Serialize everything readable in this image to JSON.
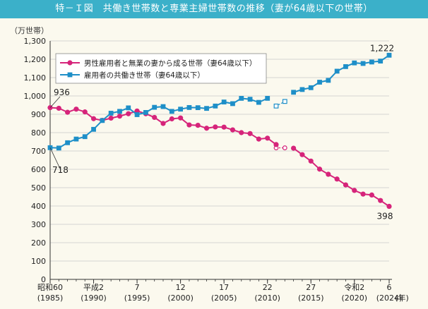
{
  "chart_data": {
    "title": "特－Ｉ図　共働き世帯数と専業主婦世帯数の推移（妻が64歳以下の世帯）",
    "type": "line",
    "ylabel": "（万世帯）",
    "xlabel": "(年)",
    "ylim": [
      0,
      1300
    ],
    "yticks": [
      0,
      100,
      200,
      300,
      400,
      500,
      600,
      700,
      800,
      900,
      1000,
      1100,
      1200,
      1300
    ],
    "yticklabels": [
      "0",
      "100",
      "200",
      "300",
      "400",
      "500",
      "600",
      "700",
      "800",
      "900",
      "1,000",
      "1,100",
      "1,200",
      "1,300"
    ],
    "xlim": [
      1985,
      2024
    ],
    "xticks": [
      {
        "year": 1985,
        "label": "昭和60",
        "sub": "(1985)"
      },
      {
        "year": 1990,
        "label": "平成2",
        "sub": "(1990)"
      },
      {
        "year": 1995,
        "label": "7",
        "sub": "(1995)"
      },
      {
        "year": 2000,
        "label": "12",
        "sub": "(2000)"
      },
      {
        "year": 2005,
        "label": "17",
        "sub": "(2005)"
      },
      {
        "year": 2010,
        "label": "22",
        "sub": "(2010)"
      },
      {
        "year": 2015,
        "label": "27",
        "sub": "(2015)"
      },
      {
        "year": 2020,
        "label": "令和2",
        "sub": "(2020)"
      },
      {
        "year": 2024,
        "label": "6",
        "sub": "(2024)"
      }
    ],
    "legend_position": "top-left",
    "series": [
      {
        "name": "男性雇用者と無業の妻から成る世帯（妻64歳以下）",
        "color": "#d6247a",
        "marker": "circle",
        "values": [
          [
            1985,
            936
          ],
          [
            1986,
            933
          ],
          [
            1987,
            911
          ],
          [
            1988,
            928
          ],
          [
            1989,
            913
          ],
          [
            1990,
            876
          ],
          [
            1991,
            867
          ],
          [
            1992,
            879
          ],
          [
            1993,
            890
          ],
          [
            1994,
            903
          ],
          [
            1995,
            918
          ],
          [
            1996,
            903
          ],
          [
            1997,
            883
          ],
          [
            1998,
            850
          ],
          [
            1999,
            875
          ],
          [
            2000,
            880
          ],
          [
            2001,
            842
          ],
          [
            2002,
            840
          ],
          [
            2003,
            824
          ],
          [
            2004,
            831
          ],
          [
            2005,
            830
          ],
          [
            2006,
            815
          ],
          [
            2007,
            800
          ],
          [
            2008,
            795
          ],
          [
            2009,
            765
          ],
          [
            2010,
            770
          ],
          [
            2011,
            735
          ],
          [
            2013,
            715
          ],
          [
            2014,
            680
          ],
          [
            2015,
            645
          ],
          [
            2016,
            601
          ],
          [
            2017,
            573
          ],
          [
            2018,
            547
          ],
          [
            2019,
            515
          ],
          [
            2020,
            485
          ],
          [
            2021,
            465
          ],
          [
            2022,
            460
          ],
          [
            2023,
            430
          ],
          [
            2024,
            398
          ]
        ],
        "dashed_segment": [
          [
            2011,
            717
          ],
          [
            2012,
            717
          ]
        ],
        "annotations": [
          {
            "year": 1985,
            "value": 936,
            "label": "936"
          },
          {
            "year": 2024,
            "value": 398,
            "label": "398"
          }
        ]
      },
      {
        "name": "雇用者の共働き世帯（妻64歳以下）",
        "color": "#1e8fc8",
        "marker": "square",
        "values": [
          [
            1985,
            718
          ],
          [
            1986,
            716
          ],
          [
            1987,
            745
          ],
          [
            1988,
            765
          ],
          [
            1989,
            778
          ],
          [
            1990,
            818
          ],
          [
            1991,
            866
          ],
          [
            1992,
            906
          ],
          [
            1993,
            916
          ],
          [
            1994,
            935
          ],
          [
            1995,
            898
          ],
          [
            1996,
            910
          ],
          [
            1997,
            938
          ],
          [
            1998,
            942
          ],
          [
            1999,
            916
          ],
          [
            2000,
            928
          ],
          [
            2001,
            937
          ],
          [
            2002,
            936
          ],
          [
            2003,
            932
          ],
          [
            2004,
            945
          ],
          [
            2005,
            967
          ],
          [
            2006,
            958
          ],
          [
            2007,
            987
          ],
          [
            2008,
            982
          ],
          [
            2009,
            965
          ],
          [
            2010,
            987
          ],
          [
            2013,
            1020
          ],
          [
            2014,
            1035
          ],
          [
            2015,
            1045
          ],
          [
            2016,
            1075
          ],
          [
            2017,
            1085
          ],
          [
            2018,
            1135
          ],
          [
            2019,
            1160
          ],
          [
            2020,
            1180
          ],
          [
            2021,
            1177
          ],
          [
            2022,
            1185
          ],
          [
            2023,
            1190
          ],
          [
            2024,
            1222
          ]
        ],
        "dashed_segment": [
          [
            2011,
            945
          ],
          [
            2012,
            970
          ]
        ],
        "annotations": [
          {
            "year": 1985,
            "value": 718,
            "label": "718"
          },
          {
            "year": 2024,
            "value": 1222,
            "label": "1,222"
          }
        ]
      }
    ]
  }
}
